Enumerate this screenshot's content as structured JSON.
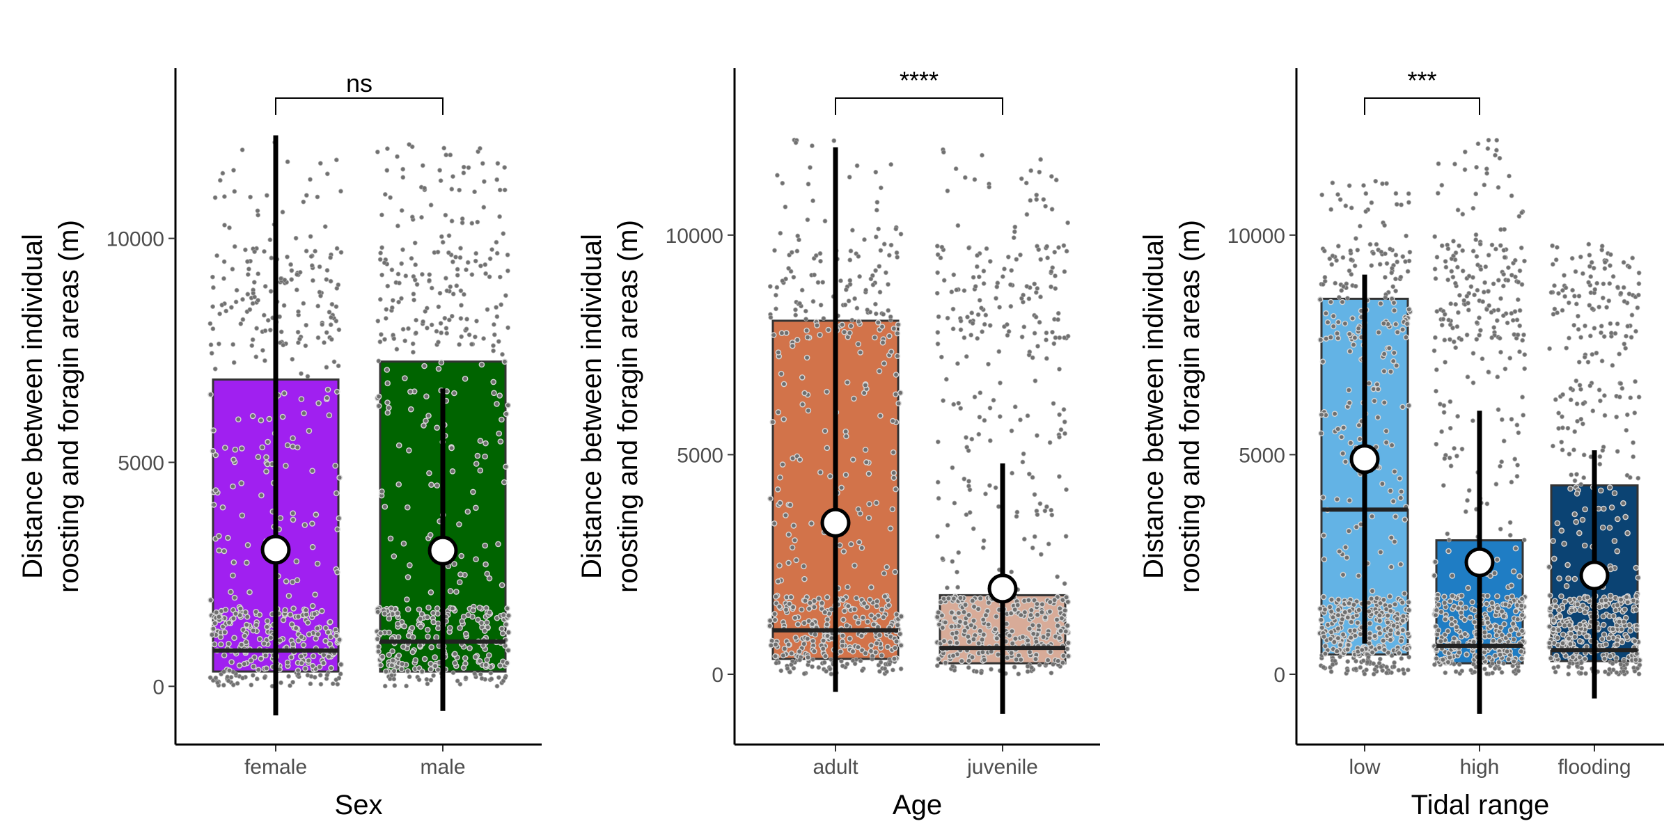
{
  "chart_data": [
    {
      "type": "box",
      "xlabel": "Sex",
      "ylabel": [
        "Distance between individual",
        "roosting and foragin areas (m)"
      ],
      "ylim": [
        -1300,
        13800
      ],
      "yticks": [
        0,
        5000,
        10000
      ],
      "categories": [
        "female",
        "male"
      ],
      "colors": [
        "#A020F0",
        "#006400"
      ],
      "boxes": [
        {
          "category": "female",
          "q1": 330,
          "median": 800,
          "q3": 6850,
          "mean": 3050,
          "sd_low": -650,
          "sd_high": 12300,
          "spread": 12200
        },
        {
          "category": "male",
          "q1": 330,
          "median": 1000,
          "q3": 7250,
          "mean": 3030,
          "sd_low": -550,
          "sd_high": 6650,
          "spread": 12200
        }
      ],
      "significance": {
        "pair": [
          "female",
          "male"
        ],
        "label": "ns"
      }
    },
    {
      "type": "box",
      "xlabel": "Age",
      "ylabel": [
        "Distance between individual",
        "roosting and foragin areas (m)"
      ],
      "ylim": [
        -1600,
        13800
      ],
      "yticks": [
        0,
        5000,
        10000
      ],
      "categories": [
        "adult",
        "juvenile"
      ],
      "colors": [
        "#D2734A",
        "#D8AB98"
      ],
      "boxes": [
        {
          "category": "adult",
          "q1": 350,
          "median": 1000,
          "q3": 8050,
          "mean": 3450,
          "sd_low": -400,
          "sd_high": 12000,
          "spread": 12200
        },
        {
          "category": "juvenile",
          "q1": 250,
          "median": 600,
          "q3": 1800,
          "mean": 1950,
          "sd_low": -900,
          "sd_high": 4800,
          "spread": 12000
        }
      ],
      "significance": {
        "pair": [
          "adult",
          "juvenile"
        ],
        "label": "****"
      }
    },
    {
      "type": "box",
      "xlabel": "Tidal range",
      "ylabel": [
        "Distance between individual",
        "roosting and foragin areas (m)"
      ],
      "ylim": [
        -1600,
        13800
      ],
      "yticks": [
        0,
        5000,
        10000
      ],
      "categories": [
        "low",
        "high",
        "flooding"
      ],
      "colors": [
        "#63B3E5",
        "#1F7DC4",
        "#0B4373"
      ],
      "boxes": [
        {
          "category": "low",
          "q1": 450,
          "median": 3750,
          "q3": 8550,
          "mean": 4900,
          "sd_low": 700,
          "sd_high": 9100,
          "spread": 11300
        },
        {
          "category": "high",
          "q1": 250,
          "median": 650,
          "q3": 3050,
          "mean": 2550,
          "sd_low": -900,
          "sd_high": 6000,
          "spread": 12200
        },
        {
          "category": "flooding",
          "q1": 300,
          "median": 550,
          "q3": 4300,
          "mean": 2250,
          "sd_low": -550,
          "sd_high": 5100,
          "spread": 7600
        }
      ],
      "significance": {
        "pair": [
          "low",
          "high"
        ],
        "label": "***"
      }
    }
  ]
}
